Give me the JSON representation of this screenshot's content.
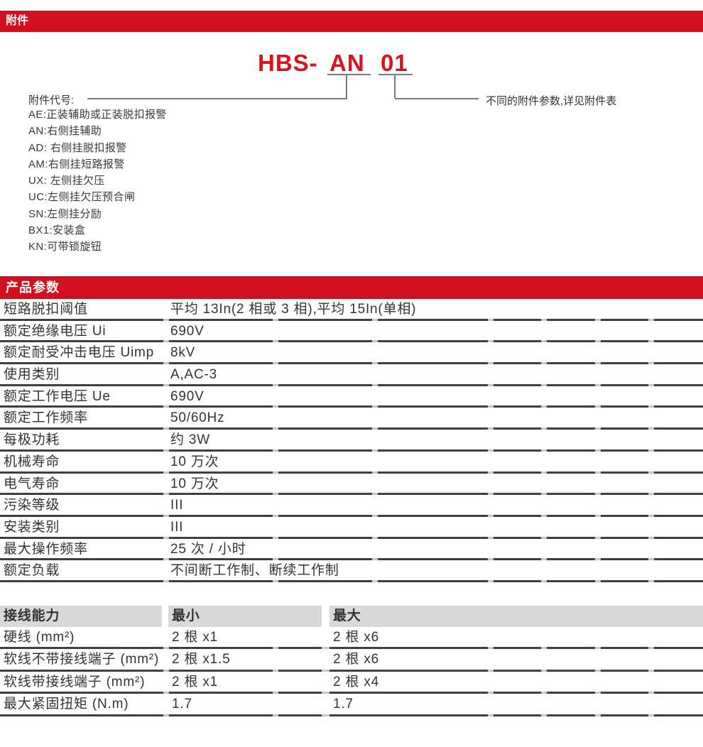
{
  "sections": {
    "accessories": "附件",
    "product_params": "产品参数"
  },
  "model_diagram": {
    "prefix": "HBS-",
    "code": "AN",
    "variant": "01",
    "codes_label": "附件代号:",
    "variant_note": "不同的附件参数,详见附件表"
  },
  "accessory_codes": {
    "items": [
      "AE:正装辅助或正装脱扣报警",
      "AN:右侧挂辅助",
      "AD: 右侧挂脱扣报警",
      "AM:右侧挂短路报警",
      "UX: 左侧挂欠压",
      "UC:左侧挂欠压预合闸",
      "SN:左侧挂分励",
      "BX1:安装盒",
      "KN:可带锁旋钮"
    ]
  },
  "product_params": {
    "rows": [
      {
        "label": "短路脱扣阈值",
        "value": "平均 13In(2 相或 3 相),平均 15In(单相)"
      },
      {
        "label": "额定绝缘电压 Ui",
        "value": "690V"
      },
      {
        "label": "额定耐受冲击电压 Uimp",
        "value": "8kV"
      },
      {
        "label": "使用类别",
        "value": "A,AC-3"
      },
      {
        "label": "额定工作电压 Ue",
        "value": "690V"
      },
      {
        "label": "额定工作频率",
        "value": "50/60Hz"
      },
      {
        "label": "每极功耗",
        "value": "约 3W"
      },
      {
        "label": "机械寿命",
        "value": "10 万次"
      },
      {
        "label": "电气寿命",
        "value": "10 万次"
      },
      {
        "label": "污染等级",
        "value": "III"
      },
      {
        "label": "安装类别",
        "value": "III"
      },
      {
        "label": "最大操作频率",
        "value": "25 次 / 小时"
      },
      {
        "label": "额定负载",
        "value": "不间断工作制、断续工作制"
      }
    ]
  },
  "wiring_capacity": {
    "header": {
      "name": "接线能力",
      "min": "最小",
      "max": "最大"
    },
    "rows": [
      {
        "label": "硬线 (mm²)",
        "min": "2 根 x1",
        "max": "2 根 x6"
      },
      {
        "label": "软线不带接线端子 (mm²)",
        "min": "2 根 x1.5",
        "max": "2 根 x6"
      },
      {
        "label": "软线带接线端子 (mm²)",
        "min": "2 根 x1",
        "max": "2 根 x4"
      },
      {
        "label": "最大紧固扭矩 (N.m)",
        "min": "1.7",
        "max": "1.7"
      }
    ]
  },
  "colors": {
    "accent_red": "#d20f1e",
    "header_gray": "#d9d9d9",
    "rule_dark": "#3f3f42",
    "connector_gray": "#7a7a7a"
  }
}
